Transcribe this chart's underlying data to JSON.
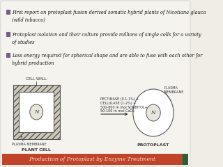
{
  "bg_color": "#f0ede6",
  "slide_bg": "#f5f3ee",
  "title_bar_color": "#c0432a",
  "title_bar_text": "Production of Protoplast by Enzyme Treatment",
  "title_bar_text_color": "#f0dfc8",
  "bullet_icon_color": "#7a5c8a",
  "bullet_points": [
    "First report on protoplast fusion derived somatic hybrid plants of Nicotiana glauca\n(wild tobacco)",
    "Protoplast isolation and their culture provide millions of single cells for a variety\nof studies",
    "Less energy required for spherical shape and are able to fuse with each other for\nhybrid production"
  ],
  "cell_wall_label": "CELL WALL",
  "plasma_membrane_label": "PLASMA MEMBRANE",
  "plant_cell_label": "PLANT CELL",
  "protoplast_label": "PROTOPLAST",
  "plasma_membrane_right_label": "PLASMA\nMEMBRANE",
  "nucleus_label": "N",
  "enzyme_text": "PECTINASE (0.1-1%) +\nCELLULASE (1-2%) +\n500-800 m mol SORBITOL+\n50-100 m mol CaCl₂",
  "hatch_color": "#aaaaaa",
  "cell_outline": "#555555",
  "green_sq_color": "#2d6030"
}
